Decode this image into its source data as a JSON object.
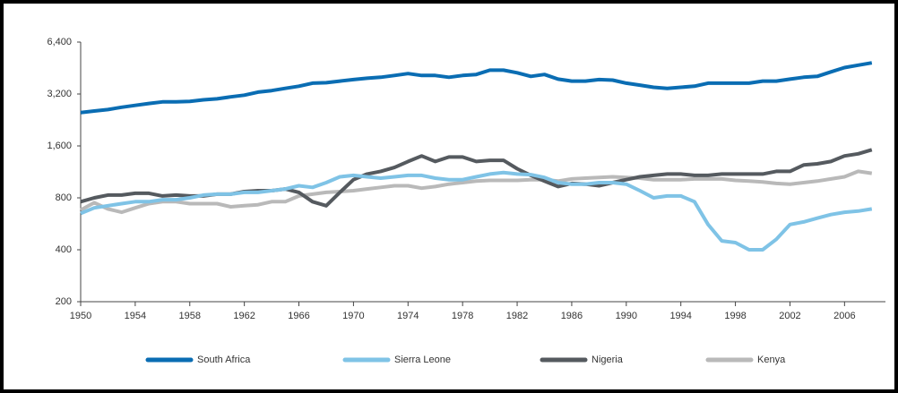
{
  "chart_data": {
    "type": "line",
    "x": [
      1950,
      1951,
      1952,
      1953,
      1954,
      1955,
      1956,
      1957,
      1958,
      1959,
      1960,
      1961,
      1962,
      1963,
      1964,
      1965,
      1966,
      1967,
      1968,
      1969,
      1970,
      1971,
      1972,
      1973,
      1974,
      1975,
      1976,
      1977,
      1978,
      1979,
      1980,
      1981,
      1982,
      1983,
      1984,
      1985,
      1986,
      1987,
      1988,
      1989,
      1990,
      1991,
      1992,
      1993,
      1994,
      1995,
      1996,
      1997,
      1998,
      1999,
      2000,
      2001,
      2002,
      2003,
      2004,
      2005,
      2006,
      2007,
      2008
    ],
    "series": [
      {
        "name": "South Africa",
        "color": "#0a6db3",
        "values": [
          2500,
          2550,
          2600,
          2680,
          2750,
          2820,
          2880,
          2880,
          2900,
          2960,
          3000,
          3080,
          3150,
          3280,
          3350,
          3450,
          3550,
          3700,
          3720,
          3800,
          3880,
          3950,
          4000,
          4100,
          4200,
          4100,
          4100,
          4000,
          4100,
          4150,
          4400,
          4400,
          4250,
          4050,
          4150,
          3900,
          3800,
          3800,
          3880,
          3850,
          3700,
          3600,
          3500,
          3450,
          3500,
          3550,
          3700,
          3700,
          3700,
          3700,
          3800,
          3800,
          3900,
          4000,
          4050,
          4300,
          4550,
          4700,
          4850
        ]
      },
      {
        "name": "Sierra Leone",
        "color": "#7fc3e6",
        "values": [
          650,
          700,
          720,
          740,
          760,
          760,
          780,
          780,
          800,
          830,
          840,
          840,
          860,
          860,
          880,
          900,
          940,
          920,
          980,
          1060,
          1080,
          1060,
          1040,
          1060,
          1080,
          1080,
          1040,
          1020,
          1020,
          1060,
          1100,
          1120,
          1100,
          1090,
          1050,
          980,
          960,
          960,
          980,
          980,
          960,
          880,
          800,
          820,
          820,
          760,
          560,
          450,
          440,
          400,
          400,
          460,
          560,
          580,
          610,
          640,
          660,
          670,
          690
        ]
      },
      {
        "name": "Nigeria",
        "color": "#555a5f",
        "values": [
          760,
          800,
          830,
          830,
          850,
          850,
          820,
          830,
          820,
          820,
          840,
          840,
          870,
          880,
          880,
          900,
          860,
          760,
          720,
          860,
          1020,
          1100,
          1140,
          1200,
          1300,
          1400,
          1300,
          1380,
          1380,
          1300,
          1320,
          1320,
          1180,
          1080,
          1000,
          930,
          970,
          960,
          940,
          980,
          1020,
          1060,
          1080,
          1100,
          1100,
          1080,
          1080,
          1100,
          1100,
          1100,
          1100,
          1140,
          1140,
          1240,
          1260,
          1300,
          1400,
          1440,
          1520
        ]
      },
      {
        "name": "Kenya",
        "color": "#b9b9b9",
        "values": [
          680,
          750,
          690,
          660,
          700,
          740,
          760,
          760,
          740,
          740,
          740,
          710,
          720,
          730,
          760,
          760,
          820,
          840,
          860,
          870,
          880,
          900,
          920,
          940,
          940,
          910,
          930,
          960,
          980,
          1000,
          1010,
          1010,
          1010,
          1020,
          1020,
          1000,
          1030,
          1040,
          1050,
          1060,
          1050,
          1040,
          1020,
          1020,
          1020,
          1030,
          1030,
          1030,
          1010,
          1000,
          990,
          970,
          960,
          980,
          1000,
          1030,
          1060,
          1140,
          1110
        ]
      }
    ],
    "xlim": [
      1950,
      2009
    ],
    "xticks": [
      1950,
      1954,
      1958,
      1962,
      1966,
      1970,
      1974,
      1978,
      1982,
      1986,
      1990,
      1994,
      1998,
      2002,
      2006
    ],
    "ylim": [
      200,
      6400
    ],
    "yticks": [
      200,
      400,
      800,
      {
        "value": 1600,
        "label": "1,600"
      },
      {
        "value": 3200,
        "label": "3,200"
      },
      {
        "value": 6400,
        "label": "6,400"
      }
    ],
    "log_scale": true,
    "legend": "bottom"
  }
}
